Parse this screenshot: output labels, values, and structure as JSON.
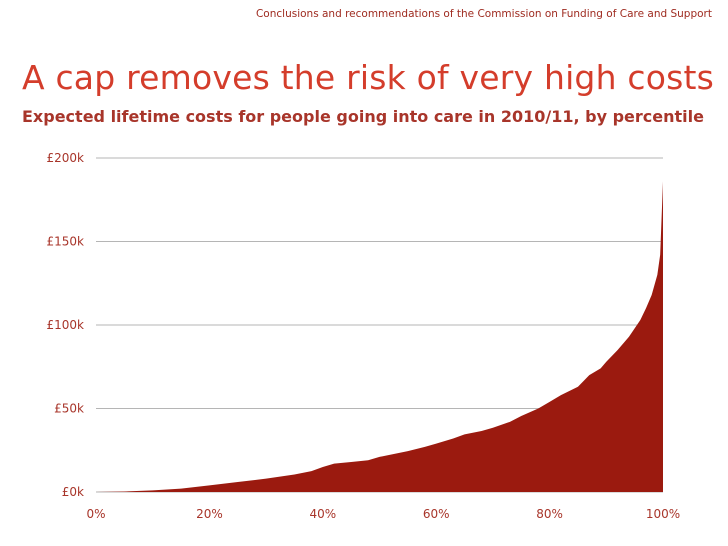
{
  "header": {
    "note": "Conclusions and recommendations of the Commission on Funding of Care and Support"
  },
  "title": "A cap removes the risk of very high costs",
  "colors": {
    "area_fill": "#9b1a0f",
    "text_accent": "#a8352a",
    "title": "#d43d2b",
    "gridline": "#b5b5b5"
  },
  "chart_data": {
    "type": "area",
    "title": "Expected lifetime costs for people going into care in 2010/11, by percentile",
    "xlabel": "",
    "ylabel": "",
    "xlim": [
      0,
      100
    ],
    "ylim": [
      0,
      200
    ],
    "x_ticks": [
      "0%",
      "20%",
      "40%",
      "60%",
      "80%",
      "100%"
    ],
    "x_tick_values": [
      0,
      20,
      40,
      60,
      80,
      100
    ],
    "y_ticks": [
      "£0k",
      "£50k",
      "£100k",
      "£150k",
      "£200k"
    ],
    "y_tick_values": [
      0,
      50,
      100,
      150,
      200
    ],
    "grid": "horizontal",
    "legend": "none",
    "series": [
      {
        "x": [
          0,
          5,
          10,
          15,
          20,
          25,
          30,
          35,
          38,
          40,
          42,
          45,
          48,
          50,
          55,
          58,
          60,
          63,
          65,
          68,
          70,
          73,
          75,
          78,
          80,
          82,
          85,
          87,
          89,
          90,
          92,
          94,
          96,
          97,
          98,
          99,
          99.5,
          100
        ],
        "y": [
          0,
          0.3,
          1,
          2,
          4,
          6,
          8,
          10.5,
          12.5,
          15,
          17,
          18,
          19,
          21,
          24.5,
          27,
          29,
          32,
          34.5,
          36.5,
          38.5,
          42,
          45.5,
          50,
          54,
          58,
          63,
          70,
          74,
          78,
          85,
          93,
          103,
          110,
          118,
          130,
          142,
          186
        ]
      }
    ]
  }
}
